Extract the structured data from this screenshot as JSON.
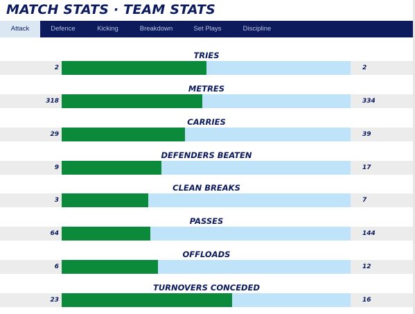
{
  "header": {
    "title": "MATCH STATS · TEAM STATS"
  },
  "tabs": [
    {
      "label": "Attack",
      "active": true
    },
    {
      "label": "Defence",
      "active": false
    },
    {
      "label": "Kicking",
      "active": false
    },
    {
      "label": "Breakdown",
      "active": false
    },
    {
      "label": "Set Plays",
      "active": false
    },
    {
      "label": "Discipline",
      "active": false
    }
  ],
  "colors": {
    "home_bar": "#0b8a3c",
    "away_bar": "#bfe4fa",
    "nav_background": "#0d1b5c",
    "title_text": "#0b1a5e"
  },
  "stats": [
    {
      "label": "TRIES",
      "home": "2",
      "away": "2",
      "home_share": 0.5
    },
    {
      "label": "METRES",
      "home": "318",
      "away": "334",
      "home_share": 0.488
    },
    {
      "label": "CARRIES",
      "home": "29",
      "away": "39",
      "home_share": 0.426
    },
    {
      "label": "DEFENDERS BEATEN",
      "home": "9",
      "away": "17",
      "home_share": 0.346
    },
    {
      "label": "CLEAN BREAKS",
      "home": "3",
      "away": "7",
      "home_share": 0.3
    },
    {
      "label": "PASSES",
      "home": "64",
      "away": "144",
      "home_share": 0.308
    },
    {
      "label": "OFFLOADS",
      "home": "6",
      "away": "12",
      "home_share": 0.333
    },
    {
      "label": "TURNOVERS CONCEDED",
      "home": "23",
      "away": "16",
      "home_share": 0.59
    }
  ]
}
